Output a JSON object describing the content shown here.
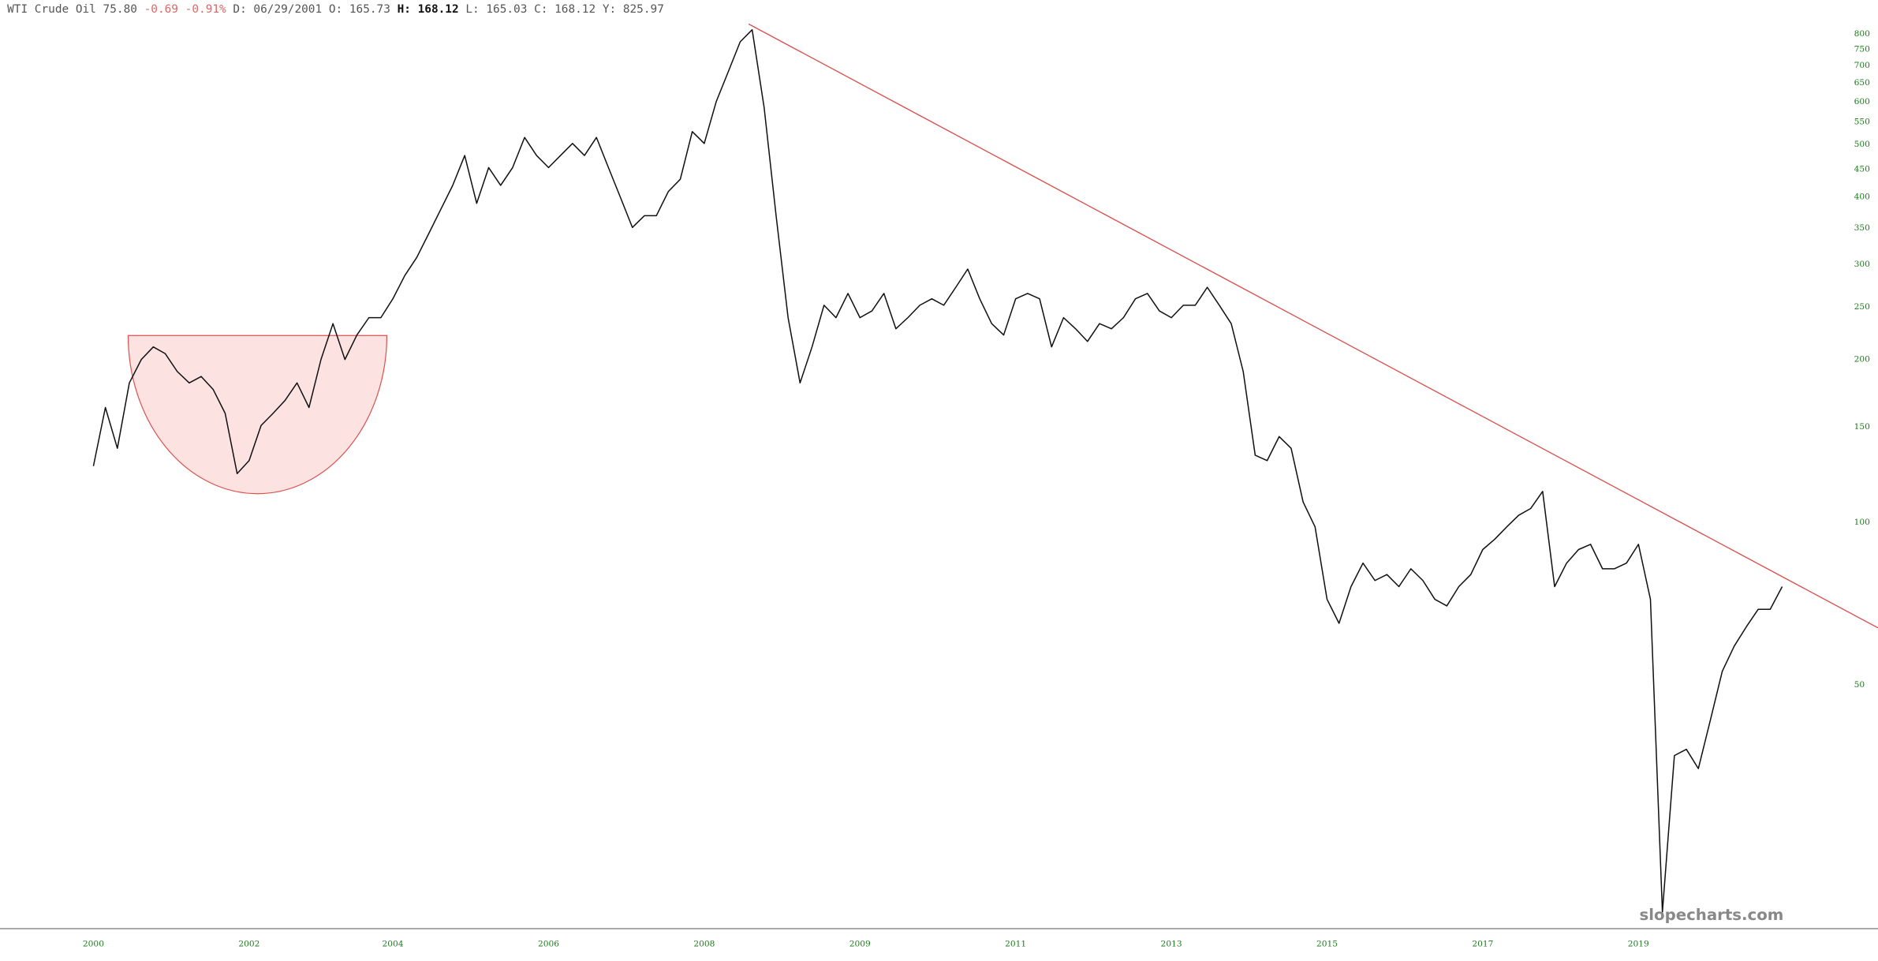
{
  "header": {
    "instrument": "WTI Crude Oil",
    "last": "75.80",
    "change": "-0.69",
    "change_percent": "-0.91%",
    "date": "D: 06/29/2001",
    "open": "O: 165.73",
    "high": "H: 168.12",
    "low": "L: 165.03",
    "close": "C: 168.12",
    "year": "Y: 825.97"
  },
  "watermark": "slopecharts.com",
  "chart_data": {
    "type": "line",
    "color": "#111111",
    "axis_label_color": "#1b7a1b",
    "log_scale": true,
    "grid": false,
    "categories": [
      "2000",
      null,
      null,
      null,
      null,
      null,
      null,
      null,
      null,
      null,
      null,
      null,
      null,
      "2002",
      null,
      null,
      null,
      null,
      null,
      null,
      null,
      null,
      null,
      null,
      null,
      "2004",
      null,
      null,
      null,
      null,
      null,
      null,
      null,
      null,
      null,
      null,
      null,
      null,
      "2006",
      null,
      null,
      null,
      null,
      null,
      null,
      null,
      null,
      null,
      null,
      null,
      null,
      "2008",
      null,
      null,
      null,
      null,
      null,
      null,
      null,
      null,
      null,
      null,
      null,
      null,
      "2009",
      null,
      null,
      null,
      null,
      null,
      null,
      null,
      null,
      null,
      null,
      null,
      null,
      "2011",
      null,
      null,
      null,
      null,
      null,
      null,
      null,
      null,
      null,
      null,
      null,
      null,
      "2013",
      null,
      null,
      null,
      null,
      null,
      null,
      null,
      null,
      null,
      null,
      null,
      null,
      "2015",
      null,
      null,
      null,
      null,
      null,
      null,
      null,
      null,
      null,
      null,
      null,
      null,
      "2017",
      null,
      null,
      null,
      null,
      null,
      null,
      null,
      null,
      null,
      null,
      null,
      null,
      "2019",
      null,
      null,
      null,
      null,
      null,
      null,
      null,
      null,
      null,
      null,
      null,
      null
    ],
    "values": [
      127,
      163,
      137,
      181,
      200,
      211,
      205,
      190,
      181,
      186,
      176,
      159,
      123,
      130,
      151,
      159,
      168,
      181,
      163,
      200,
      233,
      200,
      222,
      239,
      239,
      259,
      286,
      309,
      342,
      379,
      420,
      477,
      389,
      453,
      420,
      453,
      515,
      477,
      453,
      477,
      502,
      477,
      515,
      453,
      399,
      351,
      369,
      369,
      409,
      431,
      528,
      502,
      600,
      681,
      774,
      815,
      585,
      369,
      239,
      181,
      211,
      252,
      239,
      265,
      239,
      246,
      265,
      228,
      239,
      252,
      259,
      252,
      272,
      294,
      259,
      233,
      222,
      259,
      265,
      259,
      211,
      239,
      228,
      216,
      233,
      228,
      239,
      259,
      265,
      246,
      239,
      252,
      252,
      272,
      252,
      233,
      190,
      133,
      130,
      144,
      137,
      109,
      98,
      72,
      65,
      76,
      84,
      78,
      80,
      76,
      82,
      78,
      72,
      70,
      76,
      80,
      89,
      93,
      98,
      103,
      106,
      114,
      76,
      84,
      89,
      91,
      82,
      82,
      84,
      91,
      72,
      19,
      37,
      38,
      35,
      43,
      53,
      59,
      64,
      69,
      69,
      76
    ],
    "ylim": [
      17.7,
      925
    ],
    "yticks": [
      50,
      100,
      150,
      200,
      250,
      300,
      350,
      400,
      450,
      500,
      550,
      600,
      650,
      700,
      750,
      800
    ]
  }
}
